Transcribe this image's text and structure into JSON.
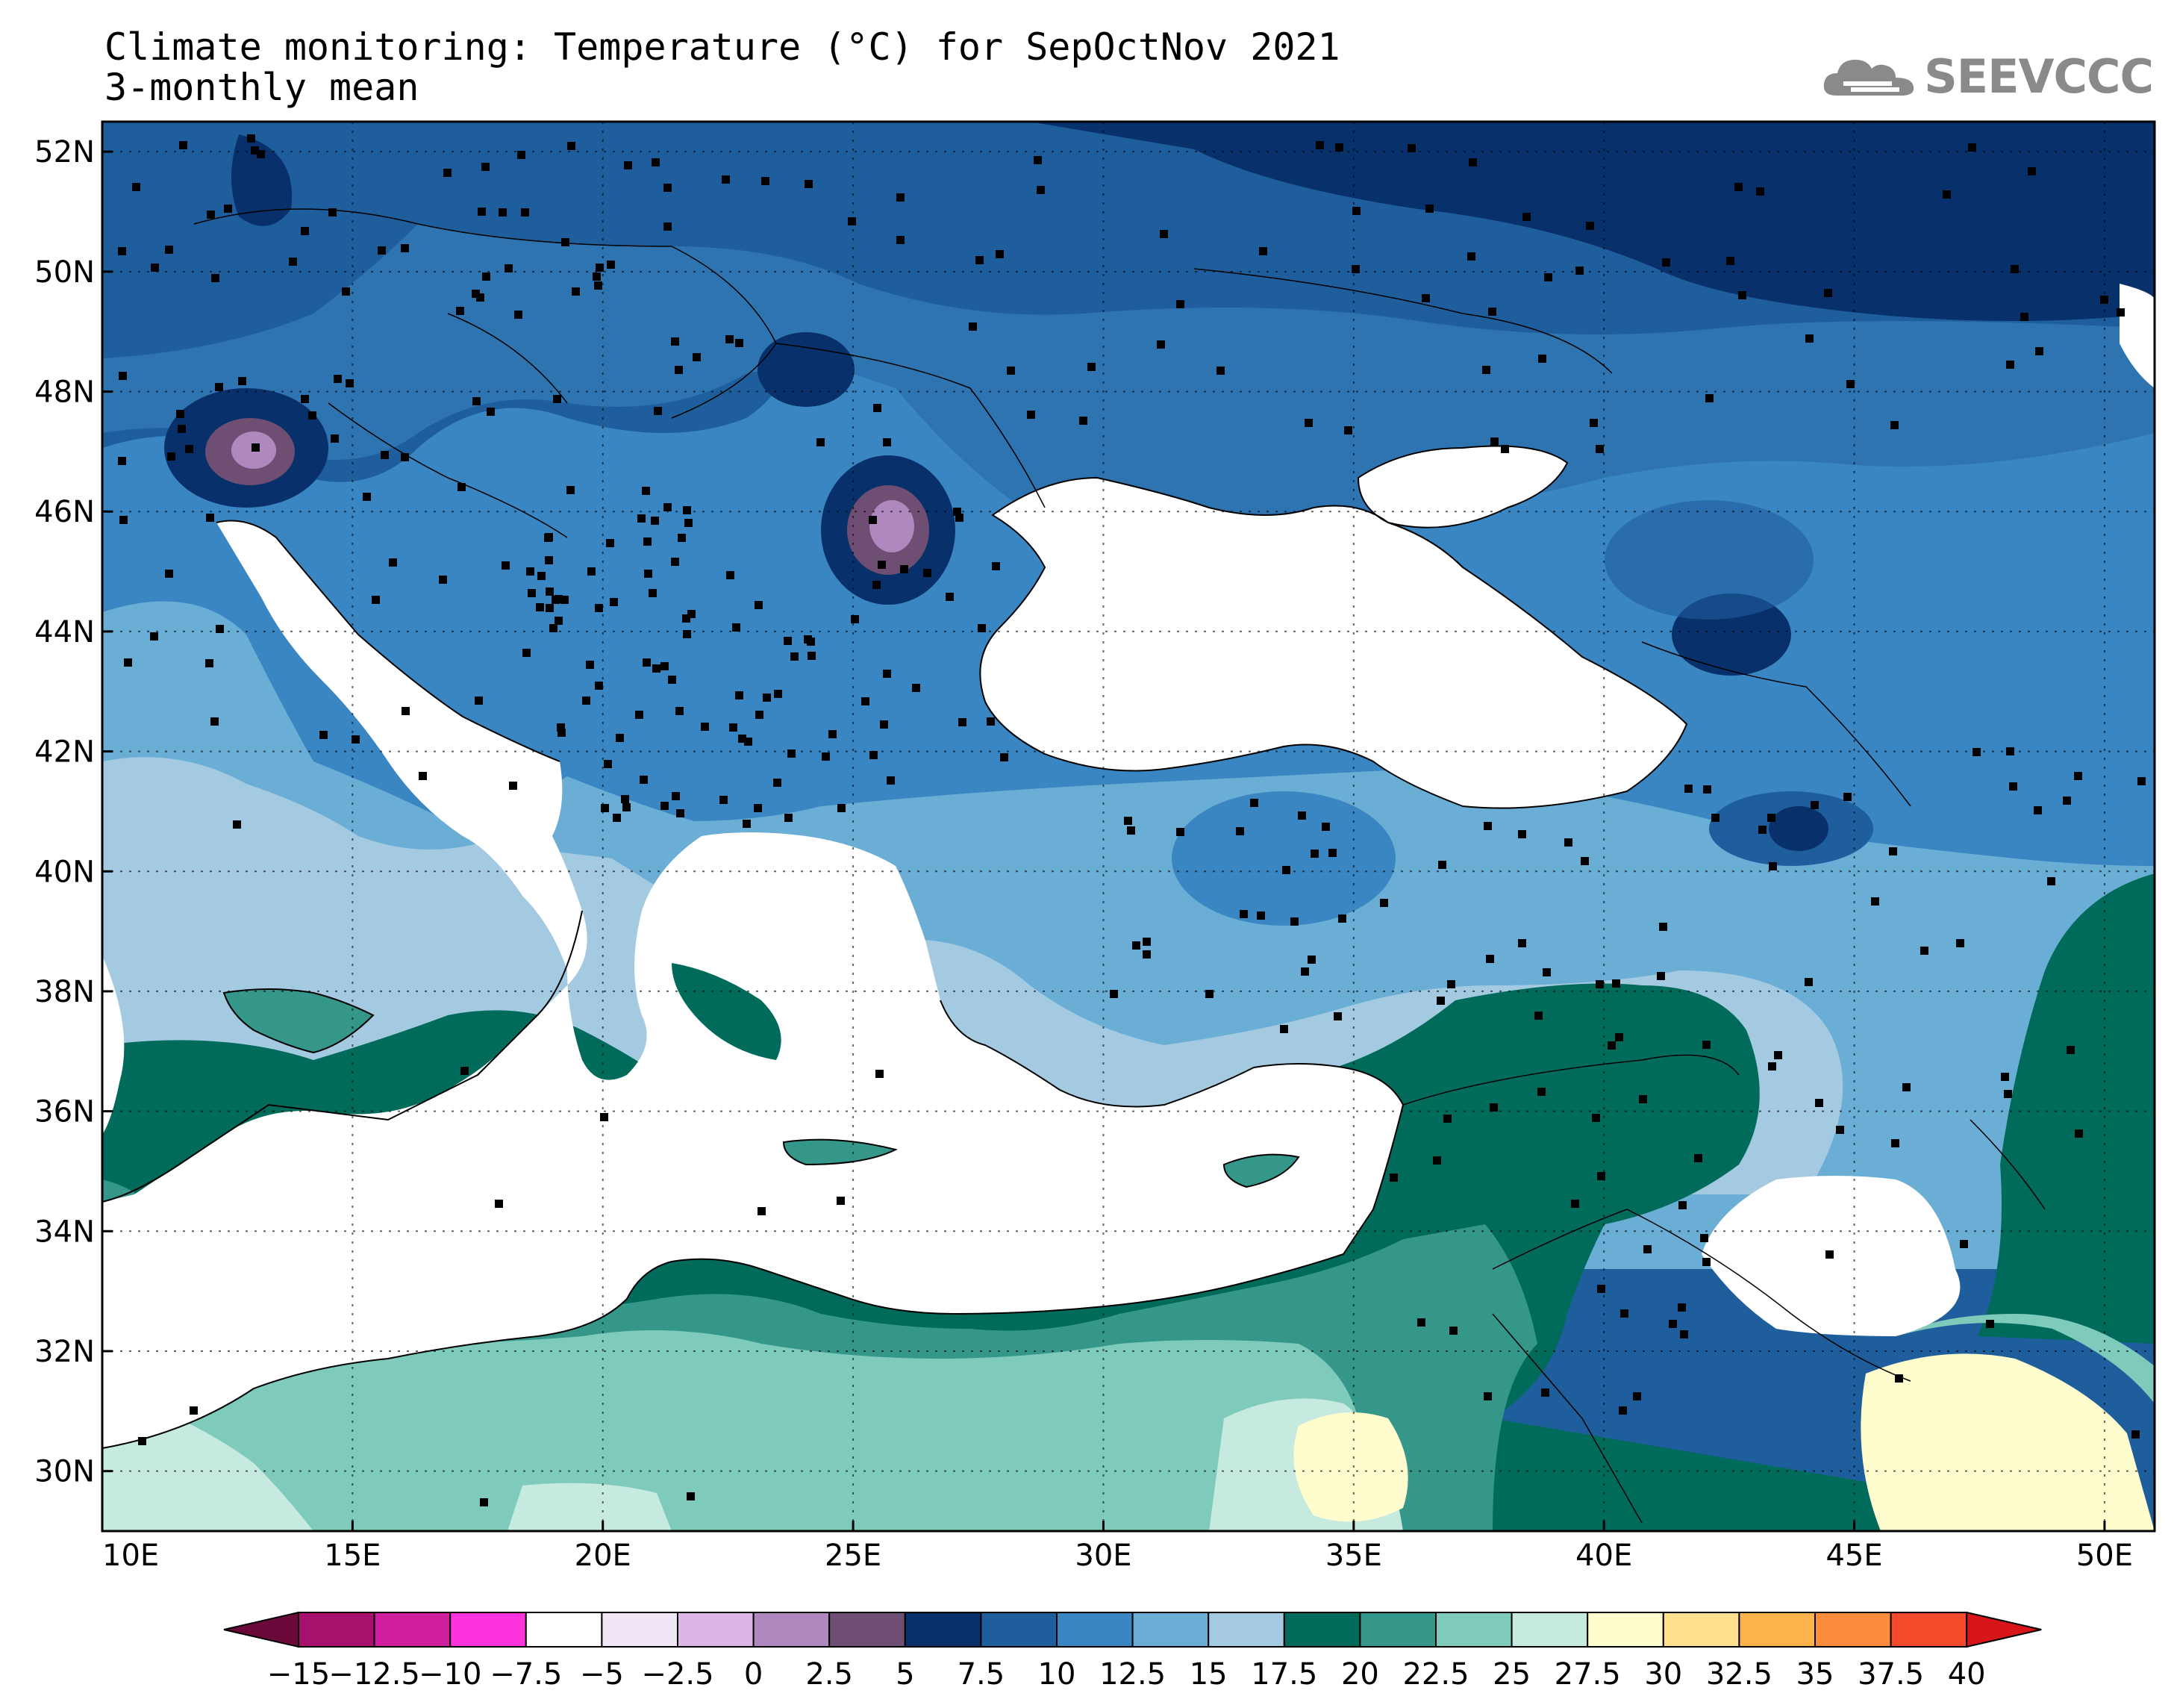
{
  "title": {
    "line1": "Climate monitoring: Temperature (°C) for SepOctNov 2021",
    "line2": "3-monthly mean"
  },
  "logo": {
    "text": "SEEVCCC",
    "icon": "cloud-icon"
  },
  "axes": {
    "lon_labels": [
      "10E",
      "15E",
      "20E",
      "25E",
      "30E",
      "35E",
      "40E",
      "45E",
      "50E"
    ],
    "lat_labels": [
      "52N",
      "50N",
      "48N",
      "46N",
      "44N",
      "42N",
      "40N",
      "38N",
      "36N",
      "34N",
      "32N",
      "30N"
    ],
    "lon_range": [
      10,
      51
    ],
    "lat_range": [
      29,
      52.5
    ]
  },
  "colorbar": {
    "labels": [
      "-15",
      "-12.5",
      "-10",
      "-7.5",
      "-5",
      "-2.5",
      "0",
      "2.5",
      "5",
      "7.5",
      "10",
      "12.5",
      "15",
      "17.5",
      "20",
      "22.5",
      "25",
      "27.5",
      "30",
      "32.5",
      "35",
      "37.5",
      "40"
    ],
    "colors": [
      "#6b0a3a",
      "#a8106e",
      "#cf1f9e",
      "#ff33dd",
      "#ffffff",
      "#f1e6f6",
      "#dcb6e6",
      "#b088c0",
      "#6e4e72",
      "#08306b",
      "#1f5e9c",
      "#3a86c2",
      "#6aaed6",
      "#a4cae1",
      "#006b5b",
      "#35968a",
      "#7fcbbb",
      "#c6e9e0",
      "#fffccd",
      "#ffe08c",
      "#fdb24c",
      "#fd8c3c",
      "#f24a2a",
      "#d81519"
    ]
  },
  "legend_units": "°C"
}
